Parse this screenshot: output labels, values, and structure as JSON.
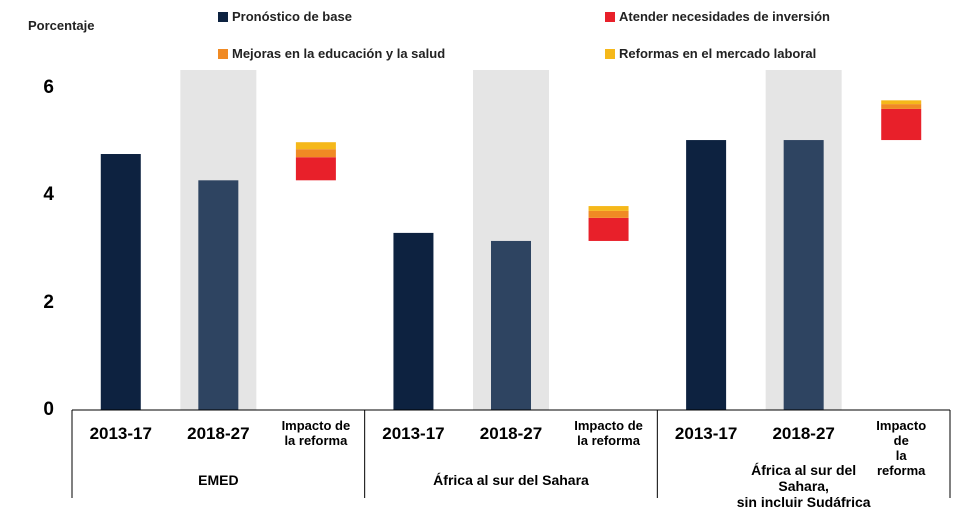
{
  "chart_data": {
    "type": "stacked_bar",
    "y_label": "Porcentaje",
    "ylim": [
      0,
      6
    ],
    "yticks": [
      0,
      2,
      4,
      6
    ],
    "categories": [
      "2013-17",
      "2018-27",
      "Impacto de\nla reforma",
      "2013-17",
      "2018-27",
      "Impacto de\nla reforma",
      "2013-17",
      "2018-27",
      "Impacto de\nla reforma"
    ],
    "groups": [
      "EMED",
      "África al sur del Sahara",
      "África al sur del Sahara,\nsin incluir Sudáfrica"
    ],
    "series": [
      {
        "name": "Pronóstico de base",
        "color": "#0d2240",
        "colors": [
          "#0d2240",
          "#2e4461",
          null,
          "#0d2240",
          "#2e4461",
          null,
          "#0d2240",
          "#2e4461",
          null
        ],
        "values": [
          4.77,
          4.28,
          null,
          3.3,
          3.15,
          null,
          5.03,
          5.03,
          null
        ]
      },
      {
        "name": "Atender necesidades de inversión",
        "color": "#e8202a",
        "values": [
          null,
          null,
          0.43,
          null,
          null,
          0.43,
          null,
          null,
          0.58
        ]
      },
      {
        "name": "Mejoras en la educación y la salud",
        "color": "#f08a24",
        "values": [
          null,
          null,
          0.15,
          null,
          null,
          0.13,
          null,
          null,
          0.09
        ]
      },
      {
        "name": "Reformas en el mercado laboral",
        "color": "#f5b81a",
        "values": [
          null,
          null,
          0.13,
          null,
          null,
          0.09,
          null,
          null,
          0.07
        ]
      }
    ]
  }
}
